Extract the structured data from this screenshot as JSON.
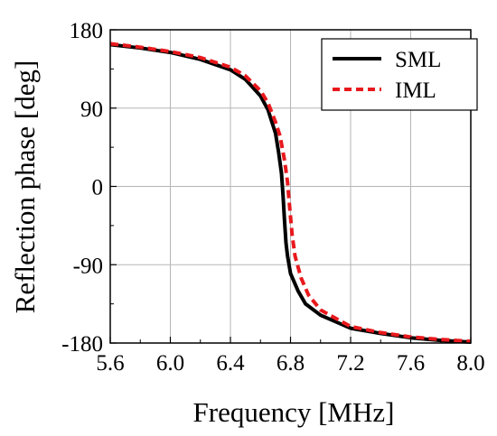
{
  "chart_data": {
    "type": "line",
    "xlabel": "Frequency [MHz]",
    "ylabel": "Reflection phase [deg]",
    "xlim": [
      5.6,
      8.0
    ],
    "ylim": [
      -180,
      180
    ],
    "xticks": [
      "5.6",
      "6.0",
      "6.4",
      "6.8",
      "7.2",
      "7.6",
      "8.0"
    ],
    "yticks": [
      "180",
      "90",
      "0",
      "-90",
      "-180"
    ],
    "grid": true,
    "legend_position": "top-right",
    "series": [
      {
        "name": "SML",
        "color": "#000000",
        "dash": "solid",
        "x": [
          5.6,
          5.8,
          6.0,
          6.2,
          6.4,
          6.5,
          6.6,
          6.65,
          6.7,
          6.72,
          6.74,
          6.75,
          6.76,
          6.77,
          6.78,
          6.8,
          6.85,
          6.9,
          7.0,
          7.2,
          7.4,
          7.6,
          7.8,
          8.0
        ],
        "y": [
          163,
          159,
          154,
          146,
          134,
          123,
          104,
          88,
          61,
          40,
          15,
          -10,
          -40,
          -65,
          -80,
          -100,
          -120,
          -135,
          -148,
          -163,
          -169,
          -174,
          -177,
          -179
        ]
      },
      {
        "name": "IML",
        "color": "#e8191d",
        "dash": "dashed",
        "x": [
          5.6,
          5.8,
          6.0,
          6.2,
          6.4,
          6.5,
          6.6,
          6.65,
          6.7,
          6.73,
          6.76,
          6.78,
          6.79,
          6.8,
          6.81,
          6.83,
          6.87,
          6.92,
          7.0,
          7.2,
          7.4,
          7.6,
          7.8,
          8.0
        ],
        "y": [
          164,
          160,
          155,
          148,
          137,
          127,
          110,
          96,
          74,
          58,
          30,
          5,
          -15,
          -35,
          -55,
          -80,
          -105,
          -125,
          -142,
          -161,
          -168,
          -173,
          -176,
          -178
        ]
      }
    ]
  }
}
